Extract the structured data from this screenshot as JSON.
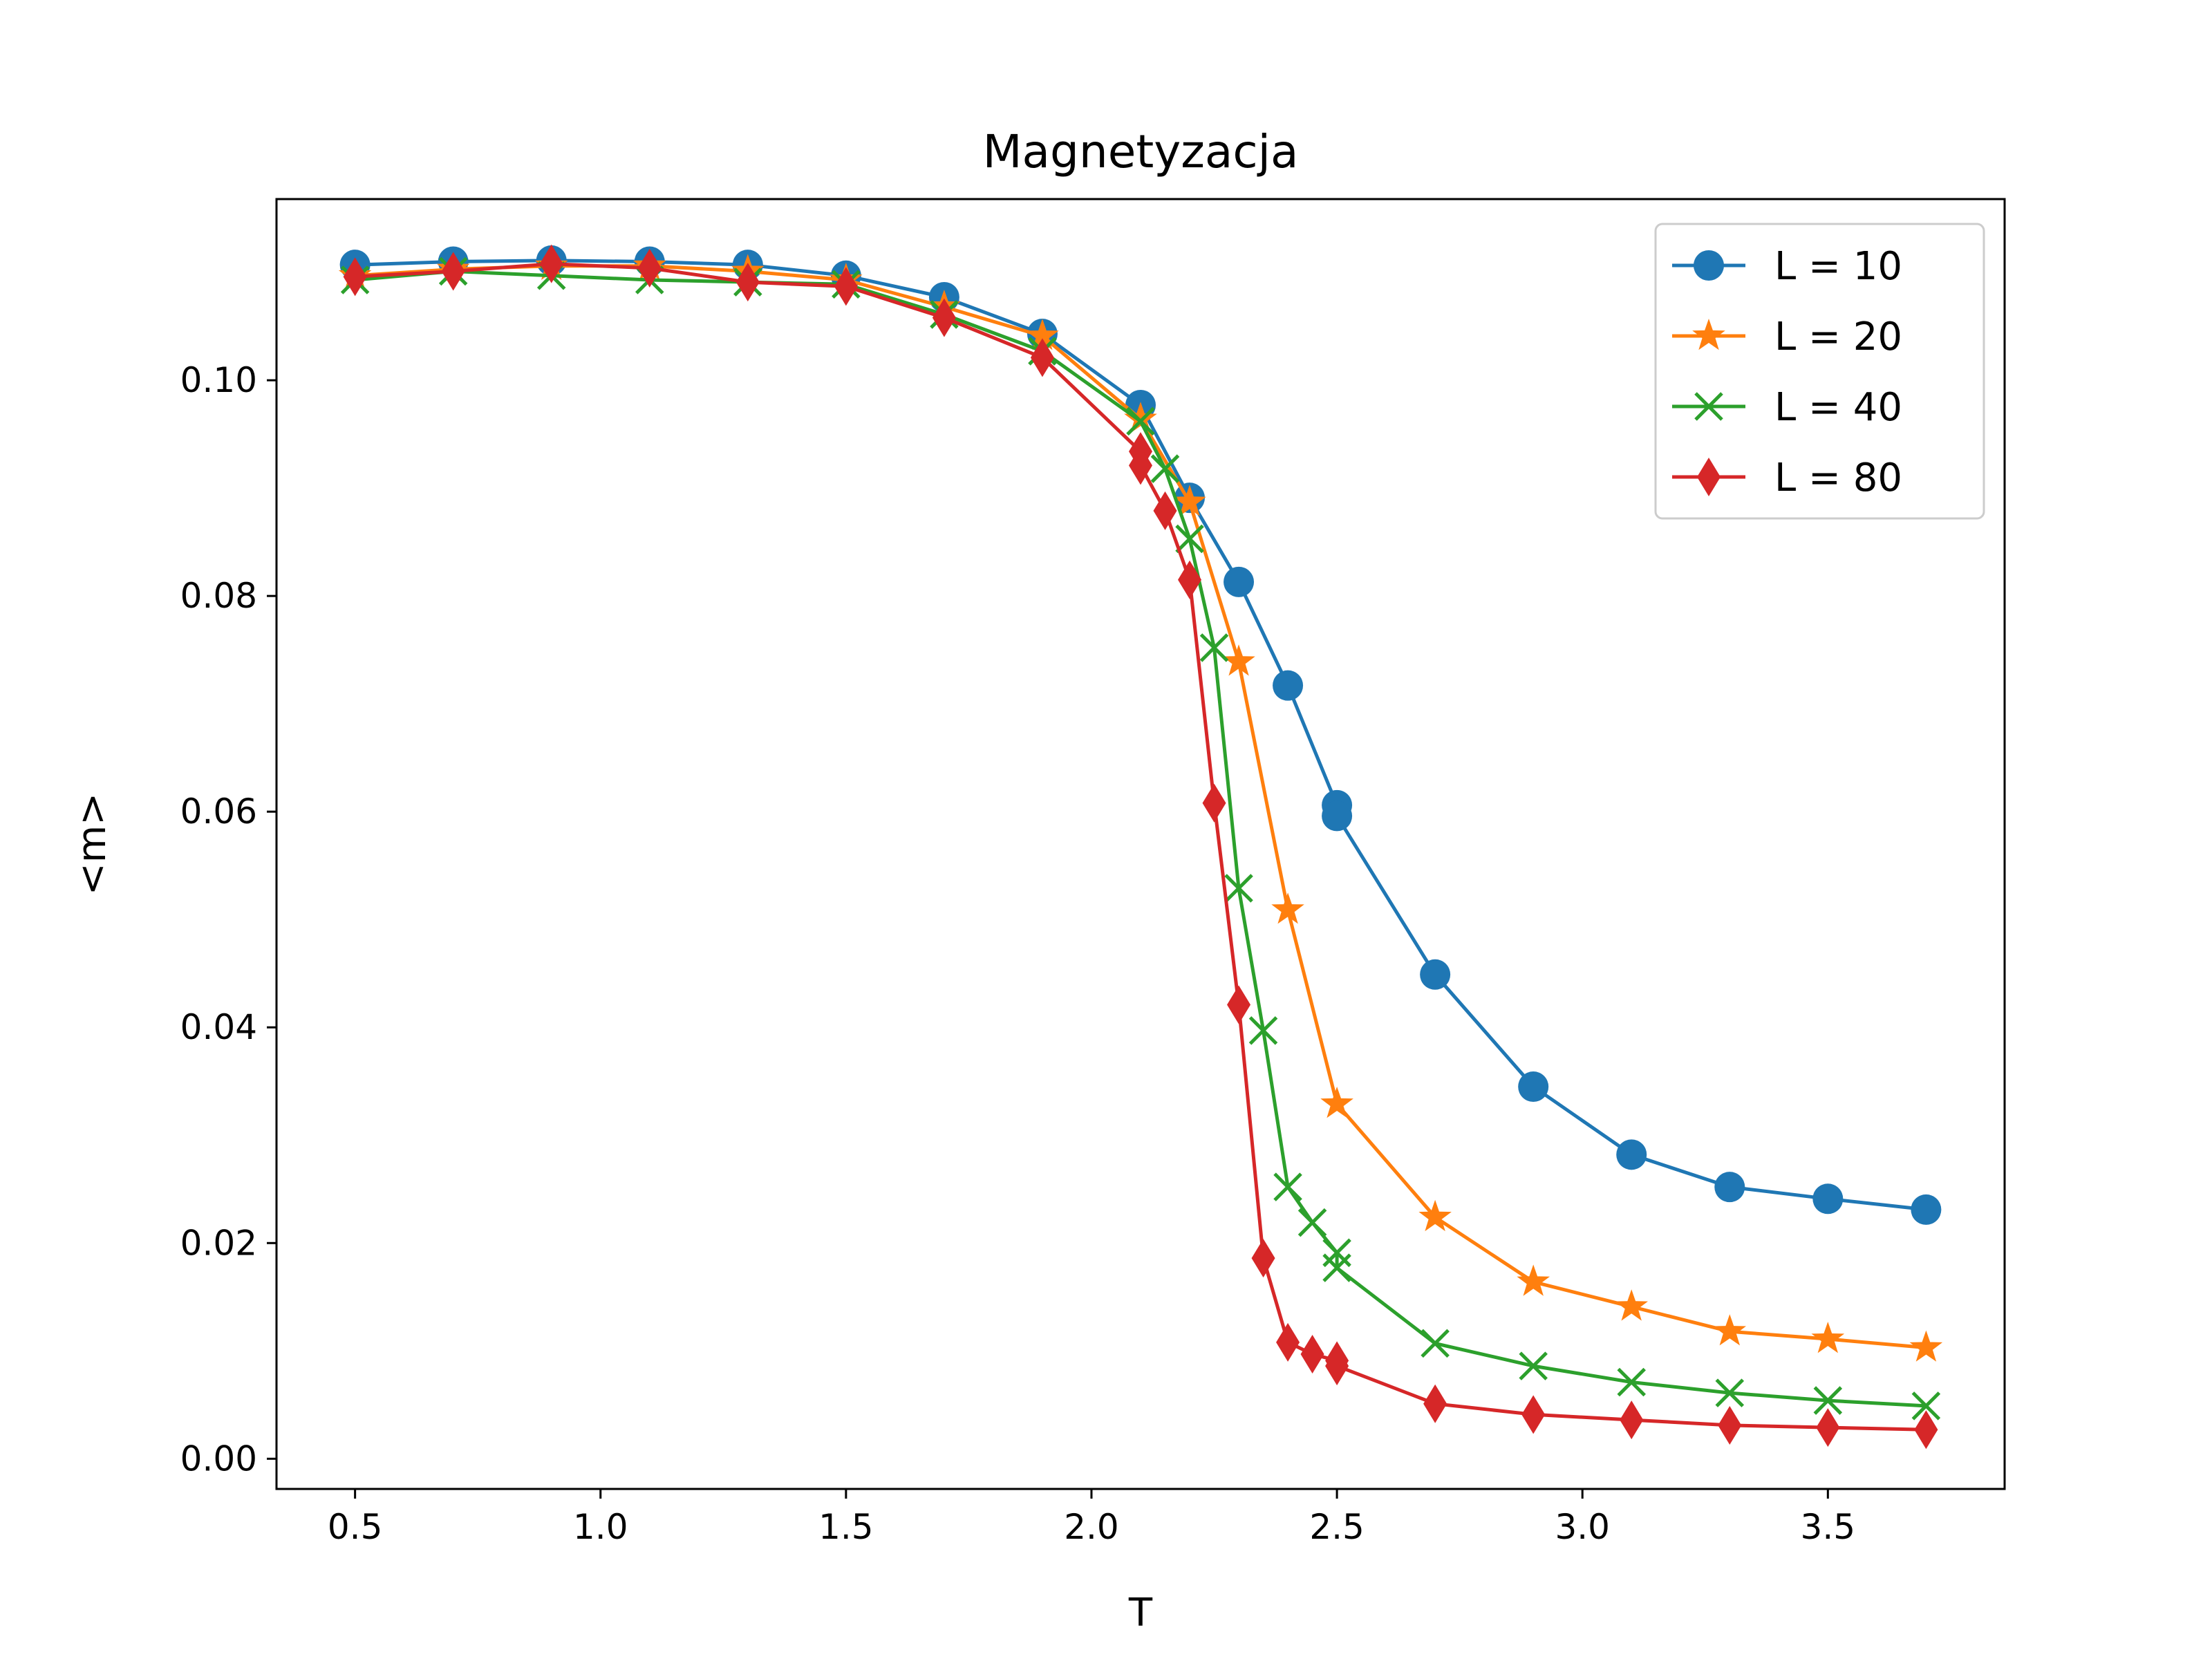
{
  "chart_data": {
    "type": "line",
    "title": "Magnetyzacja",
    "xlabel": "T",
    "ylabel": "<m>",
    "xlim": [
      0.34,
      3.86
    ],
    "ylim": [
      -0.0028,
      0.1168
    ],
    "xticks": [
      "0.5",
      "1.0",
      "1.5",
      "2.0",
      "2.5",
      "3.0",
      "3.5"
    ],
    "xtick_values": [
      0.5,
      1.0,
      1.5,
      2.0,
      2.5,
      3.0,
      3.5
    ],
    "yticks": [
      "0.00",
      "0.02",
      "0.04",
      "0.06",
      "0.08",
      "0.10"
    ],
    "ytick_values": [
      0.0,
      0.02,
      0.04,
      0.06,
      0.08,
      0.1
    ],
    "grid": false,
    "legend_position": "top-right",
    "series": [
      {
        "name": "L = 10",
        "color": "#1f77b4",
        "marker": "circle",
        "x": [
          0.5,
          0.7,
          0.9,
          1.1,
          1.3,
          1.5,
          1.7,
          1.9,
          2.1,
          2.2,
          2.3,
          2.4,
          2.5,
          2.5,
          2.7,
          2.9,
          3.1,
          3.3,
          3.5,
          3.7
        ],
        "y": [
          0.1107,
          0.111,
          0.1111,
          0.111,
          0.1107,
          0.1097,
          0.1077,
          0.1043,
          0.0977,
          0.0891,
          0.0813,
          0.0717,
          0.0606,
          0.0596,
          0.0449,
          0.0345,
          0.0282,
          0.0252,
          0.0241,
          0.0231
        ]
      },
      {
        "name": "L = 20",
        "color": "#ff7f0e",
        "marker": "star",
        "x": [
          0.5,
          0.7,
          0.9,
          1.1,
          1.3,
          1.5,
          1.7,
          1.9,
          2.1,
          2.2,
          2.3,
          2.4,
          2.5,
          2.7,
          2.9,
          3.1,
          3.3,
          3.5,
          3.7
        ],
        "y": [
          0.1097,
          0.1103,
          0.1106,
          0.1106,
          0.1101,
          0.1093,
          0.1068,
          0.1041,
          0.0964,
          0.0887,
          0.0739,
          0.0509,
          0.0329,
          0.0224,
          0.0164,
          0.0141,
          0.0118,
          0.0111,
          0.0103
        ]
      },
      {
        "name": "L = 40",
        "color": "#2ca02c",
        "marker": "x",
        "x": [
          0.5,
          0.7,
          0.9,
          1.1,
          1.3,
          1.5,
          1.7,
          1.9,
          2.1,
          2.15,
          2.2,
          2.25,
          2.3,
          2.35,
          2.4,
          2.45,
          2.5,
          2.5,
          2.7,
          2.9,
          3.1,
          3.3,
          3.5,
          3.7
        ],
        "y": [
          0.1093,
          0.1101,
          0.1097,
          0.1093,
          0.1091,
          0.1089,
          0.1061,
          0.1027,
          0.0962,
          0.0918,
          0.0853,
          0.0752,
          0.0529,
          0.0397,
          0.0252,
          0.0219,
          0.0191,
          0.0177,
          0.0107,
          0.0086,
          0.0071,
          0.0061,
          0.0054,
          0.0049
        ]
      },
      {
        "name": "L = 80",
        "color": "#d62728",
        "marker": "diamond",
        "x": [
          0.5,
          0.7,
          0.9,
          1.1,
          1.3,
          1.5,
          1.7,
          1.9,
          2.1,
          2.1,
          2.15,
          2.2,
          2.25,
          2.3,
          2.35,
          2.4,
          2.45,
          2.5,
          2.5,
          2.7,
          2.9,
          3.1,
          3.3,
          3.5,
          3.7
        ],
        "y": [
          0.1096,
          0.1101,
          0.1108,
          0.1104,
          0.1091,
          0.1087,
          0.1058,
          0.1021,
          0.0934,
          0.0921,
          0.0879,
          0.0815,
          0.0608,
          0.0421,
          0.0186,
          0.0108,
          0.0097,
          0.0091,
          0.0086,
          0.0051,
          0.0041,
          0.0036,
          0.0031,
          0.0029,
          0.0027
        ]
      }
    ]
  }
}
